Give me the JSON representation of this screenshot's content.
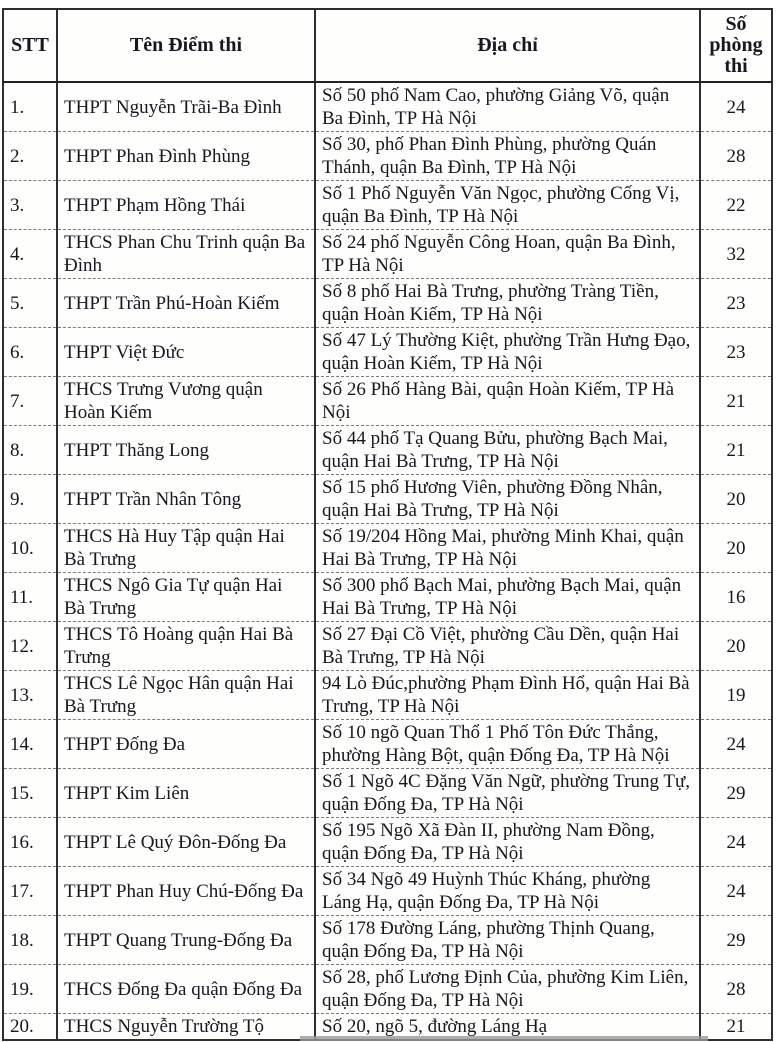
{
  "table": {
    "headers": {
      "stt": "STT",
      "name": "Tên Điểm thi",
      "address": "Địa chỉ",
      "rooms": "Số phòng thi"
    },
    "rows": [
      {
        "stt": "1.",
        "name": "THPT Nguyễn Trãi-Ba Đình",
        "address": "Số 50 phố Nam Cao, phường Giảng Võ, quận Ba Đình, TP Hà Nội",
        "rooms": "24"
      },
      {
        "stt": "2.",
        "name": "THPT Phan Đình Phùng",
        "address": "Số 30, phố Phan Đình Phùng, phường Quán Thánh, quận Ba Đình, TP Hà Nội",
        "rooms": "28"
      },
      {
        "stt": "3.",
        "name": "THPT Phạm Hồng Thái",
        "address": "Số 1 Phố Nguyễn Văn Ngọc, phường Cống Vị, quận Ba Đình, TP Hà Nội",
        "rooms": "22"
      },
      {
        "stt": "4.",
        "name": "THCS Phan Chu Trinh quận Ba Đình",
        "address": "Số 24 phố Nguyễn Công Hoan, quận Ba Đình, TP Hà Nội",
        "rooms": "32"
      },
      {
        "stt": "5.",
        "name": "THPT Trần Phú-Hoàn Kiếm",
        "address": "Số 8 phố Hai Bà Trưng, phường Tràng Tiền, quận Hoàn Kiếm, TP Hà Nội",
        "rooms": "23"
      },
      {
        "stt": "6.",
        "name": "THPT Việt Đức",
        "address": "Số 47 Lý Thường Kiệt, phường Trần Hưng Đạo, quận Hoàn Kiếm, TP Hà Nội",
        "rooms": "23"
      },
      {
        "stt": "7.",
        "name": "THCS Trưng Vương quận Hoàn Kiếm",
        "address": "Số 26 Phố Hàng Bài, quận Hoàn Kiếm, TP Hà Nội",
        "rooms": "21"
      },
      {
        "stt": "8.",
        "name": "THPT Thăng Long",
        "address": "Số 44 phố Tạ Quang Bửu, phường Bạch Mai, quận Hai Bà Trưng, TP Hà Nội",
        "rooms": "21"
      },
      {
        "stt": "9.",
        "name": "THPT Trần Nhân Tông",
        "address": "Số 15 phố Hương Viên, phường Đồng Nhân, quận Hai Bà Trưng, TP Hà Nội",
        "rooms": "20"
      },
      {
        "stt": "10.",
        "name": "THCS Hà Huy Tập quận Hai Bà Trưng",
        "address": "Số 19/204 Hồng Mai, phường Minh Khai, quận Hai Bà Trưng, TP Hà Nội",
        "rooms": "20"
      },
      {
        "stt": "11.",
        "name": "THCS Ngô Gia Tự quận Hai Bà Trưng",
        "address": "Số 300 phố Bạch Mai, phường Bạch Mai, quận Hai Bà Trưng, TP Hà Nội",
        "rooms": "16"
      },
      {
        "stt": "12.",
        "name": "THCS Tô Hoàng quận Hai Bà Trưng",
        "address": "Số 27 Đại Cồ Việt, phường Cầu Dền, quận Hai Bà Trưng, TP Hà Nội",
        "rooms": "20"
      },
      {
        "stt": "13.",
        "name": "THCS Lê Ngọc Hân quận Hai Bà Trưng",
        "address": "94 Lò Đúc,phường Phạm Đình Hổ, quận Hai Bà Trưng, TP Hà Nội",
        "rooms": "19"
      },
      {
        "stt": "14.",
        "name": "THPT Đống Đa",
        "address": "Số 10 ngõ Quan Thổ 1 Phố Tôn Đức Thắng, phường Hàng Bột, quận Đống Đa, TP Hà Nội",
        "rooms": "24"
      },
      {
        "stt": "15.",
        "name": "THPT Kim Liên",
        "address": "Số 1 Ngõ 4C Đặng Văn Ngữ, phường Trung Tự, quận Đống Đa, TP Hà Nội",
        "rooms": "29"
      },
      {
        "stt": "16.",
        "name": "THPT Lê Quý Đôn-Đống Đa",
        "address": "Số 195 Ngõ Xã Đàn II, phường Nam Đồng, quận Đống Đa, TP Hà Nội",
        "rooms": "24"
      },
      {
        "stt": "17.",
        "name": "THPT Phan Huy Chú-Đống Đa",
        "address": "Số 34 Ngõ 49 Huỳnh Thúc Kháng, phường Láng Hạ, quận Đống Đa, TP Hà Nội",
        "rooms": "24"
      },
      {
        "stt": "18.",
        "name": "THPT Quang Trung-Đống Đa",
        "address": "Số 178 Đường Láng, phường Thịnh Quang, quận Đống Đa, TP Hà Nội",
        "rooms": "29"
      },
      {
        "stt": "19.",
        "name": "THCS Đống Đa quận Đống Đa",
        "address": "Số 28, phố Lương Định Của, phường Kim Liên, quận Đống Đa, TP Hà Nội",
        "rooms": "28"
      },
      {
        "stt": "20.",
        "name": "THCS Nguyễn Trường Tộ",
        "address": "Số 20, ngõ 5, đường Láng Hạ",
        "rooms": "21"
      }
    ]
  }
}
